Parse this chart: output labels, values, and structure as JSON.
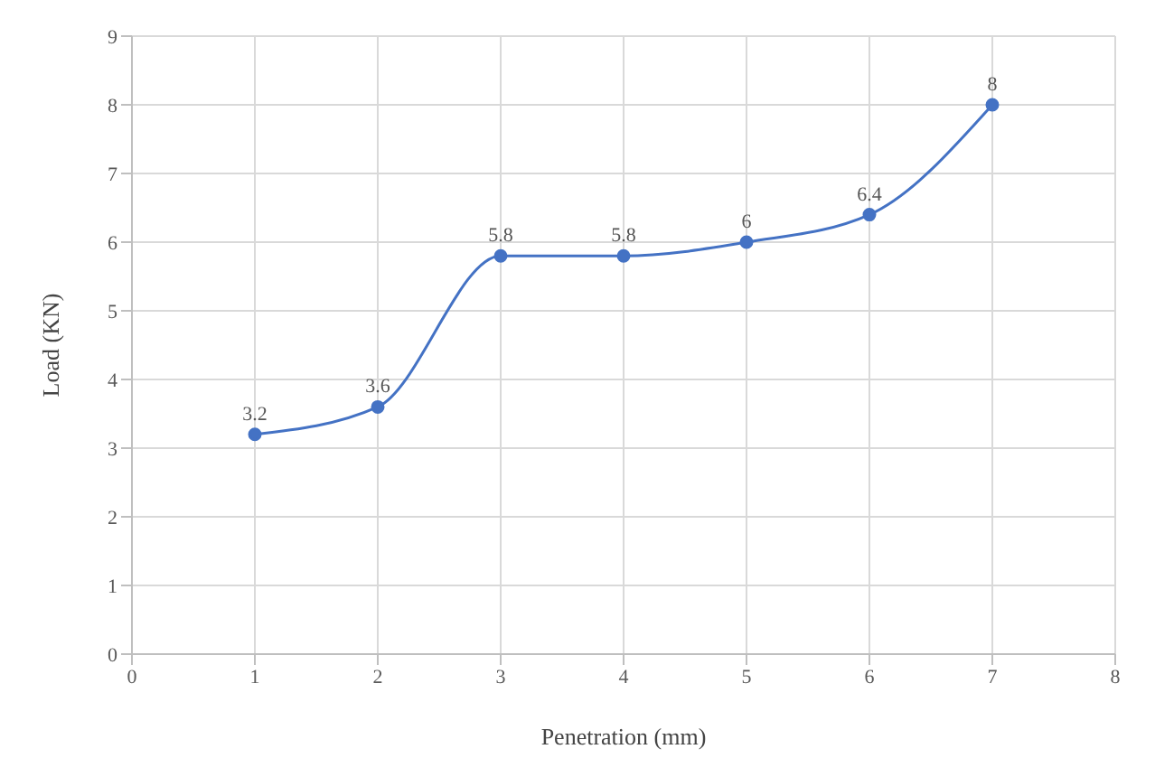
{
  "chart_data": {
    "type": "line",
    "xlabel": "Penetration (mm)",
    "ylabel": "Load (KN)",
    "x": [
      1,
      2,
      3,
      4,
      5,
      6,
      7
    ],
    "series": [
      {
        "color": "#4472c4",
        "values": [
          3.2,
          3.6,
          5.8,
          5.8,
          6,
          6.4,
          8
        ]
      }
    ],
    "xlim": [
      0,
      8
    ],
    "ylim": [
      0,
      9
    ],
    "xticks": [
      0,
      1,
      2,
      3,
      4,
      5,
      6,
      7,
      8
    ],
    "yticks": [
      0,
      1,
      2,
      3,
      4,
      5,
      6,
      7,
      8,
      9
    ],
    "grid": true,
    "marker": "circle",
    "data_labels": true
  }
}
